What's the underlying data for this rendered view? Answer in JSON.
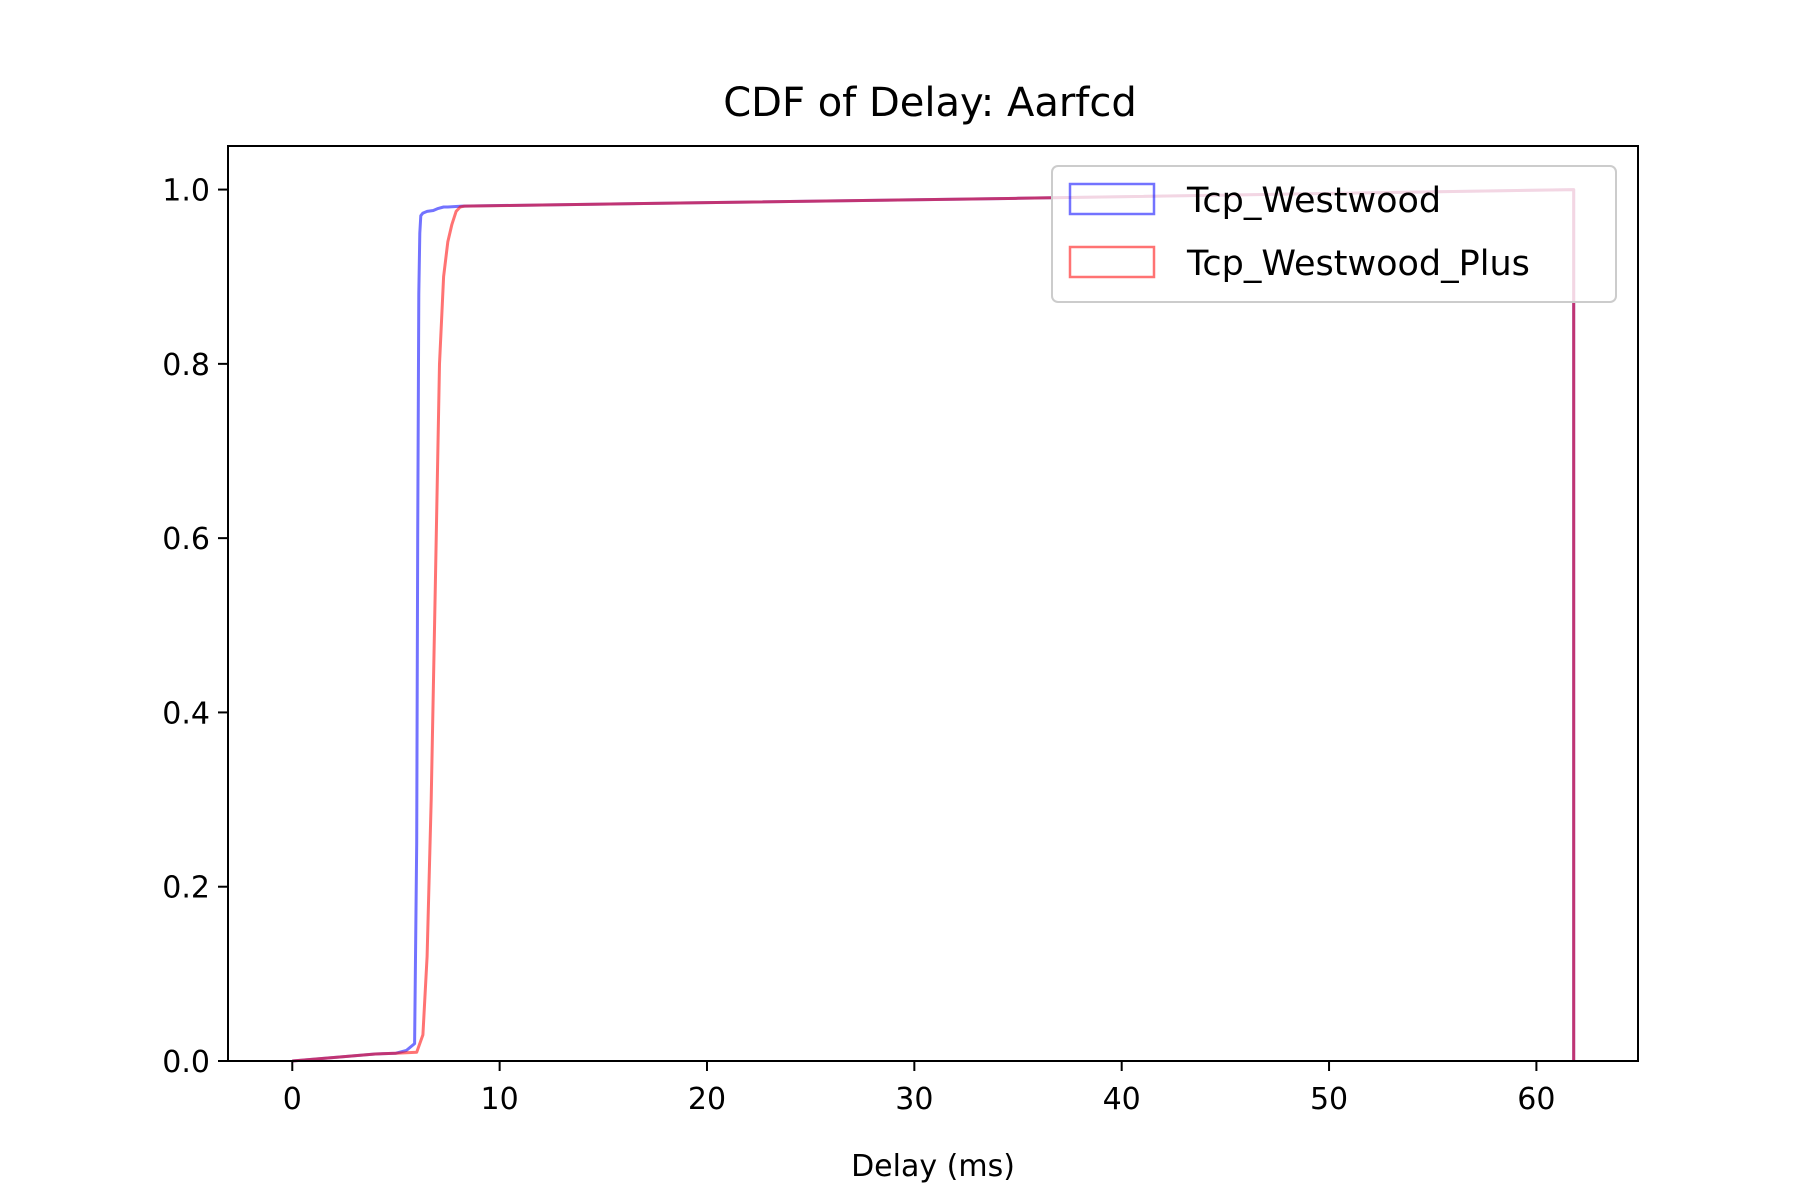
{
  "chart_data": {
    "type": "line",
    "title": "CDF of Delay: Aarfcd",
    "xlabel": "Delay (ms)",
    "ylabel": "",
    "xlim": [
      -3.1,
      64.9
    ],
    "ylim": [
      0.0,
      1.05
    ],
    "xticks": [
      0,
      10,
      20,
      30,
      40,
      50,
      60
    ],
    "yticks": [
      0.0,
      0.2,
      0.4,
      0.6,
      0.8,
      1.0
    ],
    "xtick_labels": [
      "0",
      "10",
      "20",
      "30",
      "40",
      "50",
      "60"
    ],
    "ytick_labels": [
      "0.0",
      "0.2",
      "0.4",
      "0.6",
      "0.8",
      "1.0"
    ],
    "grid": false,
    "legend_position": "top-right",
    "series": [
      {
        "name": "Tcp_Westwood",
        "color": "#0000ff",
        "x": [
          0,
          1,
          2,
          3,
          4,
          5,
          5.5,
          5.9,
          6.0,
          6.05,
          6.1,
          6.15,
          6.2,
          6.3,
          6.5,
          6.8,
          7.0,
          7.3,
          7.5,
          8.2,
          20,
          35,
          61.8,
          61.8
        ],
        "y": [
          0.0,
          0.002,
          0.004,
          0.006,
          0.008,
          0.009,
          0.012,
          0.02,
          0.25,
          0.6,
          0.88,
          0.95,
          0.97,
          0.973,
          0.975,
          0.976,
          0.978,
          0.98,
          0.98,
          0.981,
          0.985,
          0.99,
          1.0,
          0.0
        ]
      },
      {
        "name": "Tcp_Westwood_Plus",
        "color": "#ff0000",
        "x": [
          0,
          1,
          2,
          3,
          4,
          5,
          6.0,
          6.3,
          6.5,
          6.7,
          6.9,
          7.1,
          7.3,
          7.5,
          7.7,
          7.9,
          8.1,
          8.3,
          20,
          35,
          61.8,
          61.8
        ],
        "y": [
          0.0,
          0.002,
          0.004,
          0.006,
          0.008,
          0.009,
          0.01,
          0.03,
          0.12,
          0.3,
          0.55,
          0.8,
          0.9,
          0.94,
          0.96,
          0.975,
          0.98,
          0.981,
          0.985,
          0.99,
          1.0,
          0.0
        ]
      }
    ]
  }
}
